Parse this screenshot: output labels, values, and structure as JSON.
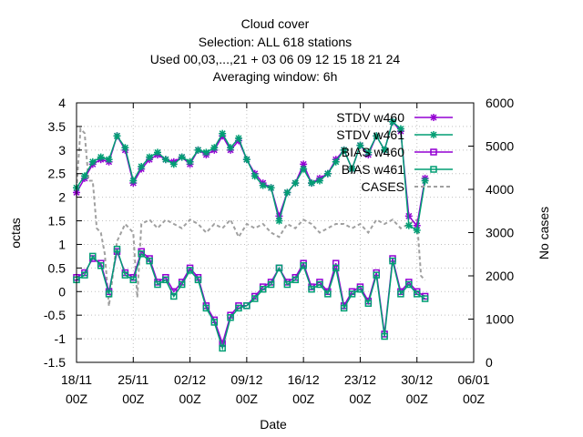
{
  "chart_data": {
    "type": "line",
    "title_lines": [
      "Cloud cover",
      "Selection: ALL    618 stations",
      "Used  00,03,...,21  + 03 06 09 12 15 18 21 24",
      "Averaging window:  6h"
    ],
    "xlabel": "Date",
    "ylabel": "octas",
    "y2label": "No cases",
    "ylim": [
      -1.5,
      4
    ],
    "y2lim": [
      0,
      6000
    ],
    "xlim_days": [
      0,
      49
    ],
    "x_ticks": [
      {
        "line1": "18/11",
        "line2": "00Z",
        "day": 0
      },
      {
        "line1": "25/11",
        "line2": "00Z",
        "day": 7
      },
      {
        "line1": "02/12",
        "line2": "00Z",
        "day": 14
      },
      {
        "line1": "09/12",
        "line2": "00Z",
        "day": 21
      },
      {
        "line1": "16/12",
        "line2": "00Z",
        "day": 28
      },
      {
        "line1": "23/12",
        "line2": "00Z",
        "day": 35
      },
      {
        "line1": "30/12",
        "line2": "00Z",
        "day": 42
      },
      {
        "line1": "06/01",
        "line2": "00Z",
        "day": 49
      }
    ],
    "y_ticks": [
      "-1.5",
      "-1",
      "-0.5",
      "0",
      "0.5",
      "1",
      "1.5",
      "2",
      "2.5",
      "3",
      "3.5",
      "4"
    ],
    "y2_ticks": [
      "0",
      "1000",
      "2000",
      "3000",
      "4000",
      "5000",
      "6000"
    ],
    "legend_position": "top-right",
    "grid": true,
    "series": [
      {
        "name": "STDV w460",
        "axis": "y1",
        "color": "#9400d3",
        "marker": "star",
        "x": [
          0,
          1,
          2,
          3,
          4,
          5,
          6,
          7,
          8,
          9,
          10,
          11,
          12,
          13,
          14,
          15,
          16,
          17,
          18,
          19,
          20,
          21,
          22,
          23,
          24,
          25,
          26,
          27,
          28,
          29,
          30,
          31,
          32,
          33,
          34,
          35,
          36,
          37,
          38,
          39,
          40,
          41,
          42,
          43
        ],
        "y": [
          2.1,
          2.4,
          2.7,
          2.8,
          2.75,
          3.3,
          3.0,
          2.3,
          2.6,
          2.8,
          2.9,
          2.8,
          2.75,
          2.85,
          2.7,
          3.0,
          2.9,
          3.0,
          3.3,
          3.0,
          3.2,
          2.8,
          2.5,
          2.3,
          2.2,
          1.6,
          2.1,
          2.3,
          2.7,
          2.3,
          2.4,
          2.5,
          2.8,
          3.0,
          2.6,
          3.1,
          2.9,
          3.3,
          3.0,
          3.6,
          3.4,
          1.6,
          1.4,
          2.4
        ]
      },
      {
        "name": "STDV w461",
        "axis": "y1",
        "color": "#009e73",
        "marker": "star",
        "x": [
          0,
          1,
          2,
          3,
          4,
          5,
          6,
          7,
          8,
          9,
          10,
          11,
          12,
          13,
          14,
          15,
          16,
          17,
          18,
          19,
          20,
          21,
          22,
          23,
          24,
          25,
          26,
          27,
          28,
          29,
          30,
          31,
          32,
          33,
          34,
          35,
          36,
          37,
          38,
          39,
          40,
          41,
          42,
          43
        ],
        "y": [
          2.2,
          2.45,
          2.75,
          2.85,
          2.8,
          3.3,
          3.05,
          2.35,
          2.65,
          2.85,
          2.95,
          2.8,
          2.7,
          2.85,
          2.75,
          3.0,
          2.95,
          3.05,
          3.35,
          3.05,
          3.25,
          2.8,
          2.45,
          2.25,
          2.2,
          1.5,
          2.1,
          2.3,
          2.6,
          2.3,
          2.35,
          2.5,
          2.75,
          3.0,
          2.6,
          3.1,
          2.95,
          3.3,
          3.0,
          3.6,
          3.45,
          1.4,
          1.3,
          2.35
        ]
      },
      {
        "name": "BIAS w460",
        "axis": "y1",
        "color": "#9400d3",
        "marker": "square",
        "x": [
          0,
          1,
          2,
          3,
          4,
          5,
          6,
          7,
          8,
          9,
          10,
          11,
          12,
          13,
          14,
          15,
          16,
          17,
          18,
          19,
          20,
          21,
          22,
          23,
          24,
          25,
          26,
          27,
          28,
          29,
          30,
          31,
          32,
          33,
          34,
          35,
          36,
          37,
          38,
          39,
          40,
          41,
          42,
          43
        ],
        "y": [
          0.3,
          0.4,
          0.7,
          0.6,
          0.0,
          0.85,
          0.4,
          0.3,
          0.85,
          0.7,
          0.2,
          0.3,
          0.0,
          0.2,
          0.5,
          0.3,
          -0.3,
          -0.6,
          -1.1,
          -0.5,
          -0.3,
          -0.3,
          -0.1,
          0.1,
          0.2,
          0.5,
          0.2,
          0.3,
          0.6,
          0.1,
          0.2,
          0.0,
          0.6,
          -0.3,
          0.0,
          0.1,
          -0.2,
          0.4,
          -0.9,
          0.7,
          0.0,
          0.2,
          0.0,
          -0.1
        ]
      },
      {
        "name": "BIAS w461",
        "axis": "y1",
        "color": "#009e73",
        "marker": "square",
        "x": [
          0,
          1,
          2,
          3,
          4,
          5,
          6,
          7,
          8,
          9,
          10,
          11,
          12,
          13,
          14,
          15,
          16,
          17,
          18,
          19,
          20,
          21,
          22,
          23,
          24,
          25,
          26,
          27,
          28,
          29,
          30,
          31,
          32,
          33,
          34,
          35,
          36,
          37,
          38,
          39,
          40,
          41,
          42,
          43
        ],
        "y": [
          0.25,
          0.35,
          0.75,
          0.55,
          -0.05,
          0.9,
          0.35,
          0.25,
          0.8,
          0.65,
          0.15,
          0.25,
          -0.1,
          0.15,
          0.45,
          0.25,
          -0.35,
          -0.65,
          -1.2,
          -0.55,
          -0.35,
          -0.3,
          -0.15,
          0.05,
          0.15,
          0.5,
          0.15,
          0.25,
          0.55,
          0.05,
          0.15,
          -0.05,
          0.5,
          -0.35,
          -0.05,
          0.05,
          -0.25,
          0.35,
          -0.95,
          0.65,
          -0.05,
          0.15,
          -0.05,
          -0.15
        ]
      },
      {
        "name": "CASES",
        "axis": "y2",
        "color": "#a0a0a0",
        "marker": "none",
        "dashed": true,
        "x": [
          0,
          0.5,
          1,
          1.5,
          2,
          2.5,
          3,
          3.5,
          4,
          5,
          6,
          7,
          7.5,
          8,
          9,
          10,
          11,
          12,
          13,
          14,
          15,
          16,
          17,
          18,
          19,
          20,
          21,
          22,
          23,
          24,
          25,
          26,
          27,
          28,
          29,
          30,
          31,
          32,
          33,
          34,
          35,
          36,
          37,
          38,
          39,
          40,
          41,
          42,
          42.5,
          43
        ],
        "y": [
          4000,
          5400,
          5300,
          4200,
          4200,
          3100,
          3000,
          2500,
          1300,
          2800,
          3200,
          3000,
          1500,
          3200,
          3300,
          3100,
          3300,
          3200,
          3100,
          3300,
          3200,
          3000,
          3200,
          3100,
          3300,
          2900,
          3200,
          3100,
          3200,
          3000,
          2900,
          3200,
          3100,
          3300,
          3200,
          3000,
          3100,
          3200,
          3200,
          3100,
          3200,
          3000,
          3300,
          3200,
          3300,
          3100,
          3200,
          3300,
          2000,
          1900
        ]
      }
    ]
  }
}
